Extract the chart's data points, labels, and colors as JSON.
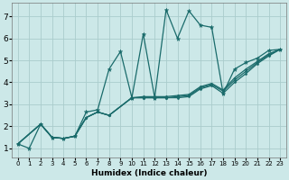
{
  "xlabel": "Humidex (Indice chaleur)",
  "bg_color": "#cce8e8",
  "line_color": "#1a6b6b",
  "grid_color": "#aacccc",
  "xlim": [
    -0.5,
    23.5
  ],
  "ylim": [
    0.6,
    7.6
  ],
  "xticks": [
    0,
    1,
    2,
    3,
    4,
    5,
    6,
    7,
    8,
    9,
    10,
    11,
    12,
    13,
    14,
    15,
    16,
    17,
    18,
    19,
    20,
    21,
    22,
    23
  ],
  "yticks": [
    1,
    2,
    3,
    4,
    5,
    6,
    7
  ],
  "series": [
    {
      "x": [
        0,
        1,
        2,
        3,
        4,
        5,
        6,
        7,
        8,
        9,
        10,
        11,
        12,
        13,
        14,
        15,
        16,
        17,
        18,
        19,
        20,
        21,
        22,
        23
      ],
      "y": [
        1.2,
        1.0,
        2.1,
        1.5,
        1.45,
        1.55,
        2.65,
        2.75,
        4.6,
        5.4,
        3.3,
        6.2,
        3.3,
        7.3,
        6.0,
        7.25,
        6.6,
        6.5,
        3.5,
        4.6,
        4.9,
        5.1,
        5.45,
        5.5
      ],
      "marker": true,
      "lw": 0.9
    },
    {
      "x": [
        0,
        2,
        3,
        4,
        5,
        6,
        7,
        8,
        10,
        11,
        12,
        13,
        14,
        15,
        16,
        17,
        18,
        19,
        20,
        21,
        22,
        23
      ],
      "y": [
        1.2,
        2.1,
        1.5,
        1.45,
        1.55,
        2.4,
        2.65,
        2.5,
        3.3,
        3.3,
        3.3,
        3.3,
        3.3,
        3.35,
        3.7,
        3.85,
        3.5,
        4.0,
        4.4,
        4.85,
        5.2,
        5.5
      ],
      "marker": false,
      "lw": 0.9
    },
    {
      "x": [
        0,
        2,
        3,
        4,
        5,
        6,
        7,
        8,
        10,
        11,
        12,
        13,
        14,
        15,
        16,
        17,
        18,
        19,
        20,
        21,
        22,
        23
      ],
      "y": [
        1.2,
        2.1,
        1.5,
        1.45,
        1.55,
        2.4,
        2.65,
        2.5,
        3.3,
        3.3,
        3.3,
        3.3,
        3.35,
        3.4,
        3.75,
        3.9,
        3.6,
        4.1,
        4.5,
        4.9,
        5.25,
        5.5
      ],
      "marker": false,
      "lw": 0.9
    },
    {
      "x": [
        0,
        2,
        3,
        4,
        5,
        6,
        7,
        8,
        10,
        11,
        12,
        13,
        14,
        15,
        16,
        17,
        18,
        19,
        20,
        21,
        22,
        23
      ],
      "y": [
        1.2,
        2.1,
        1.5,
        1.45,
        1.55,
        2.4,
        2.65,
        2.5,
        3.3,
        3.35,
        3.35,
        3.35,
        3.4,
        3.45,
        3.8,
        3.95,
        3.65,
        4.2,
        4.6,
        4.95,
        5.3,
        5.5
      ],
      "marker": false,
      "lw": 0.9
    }
  ]
}
